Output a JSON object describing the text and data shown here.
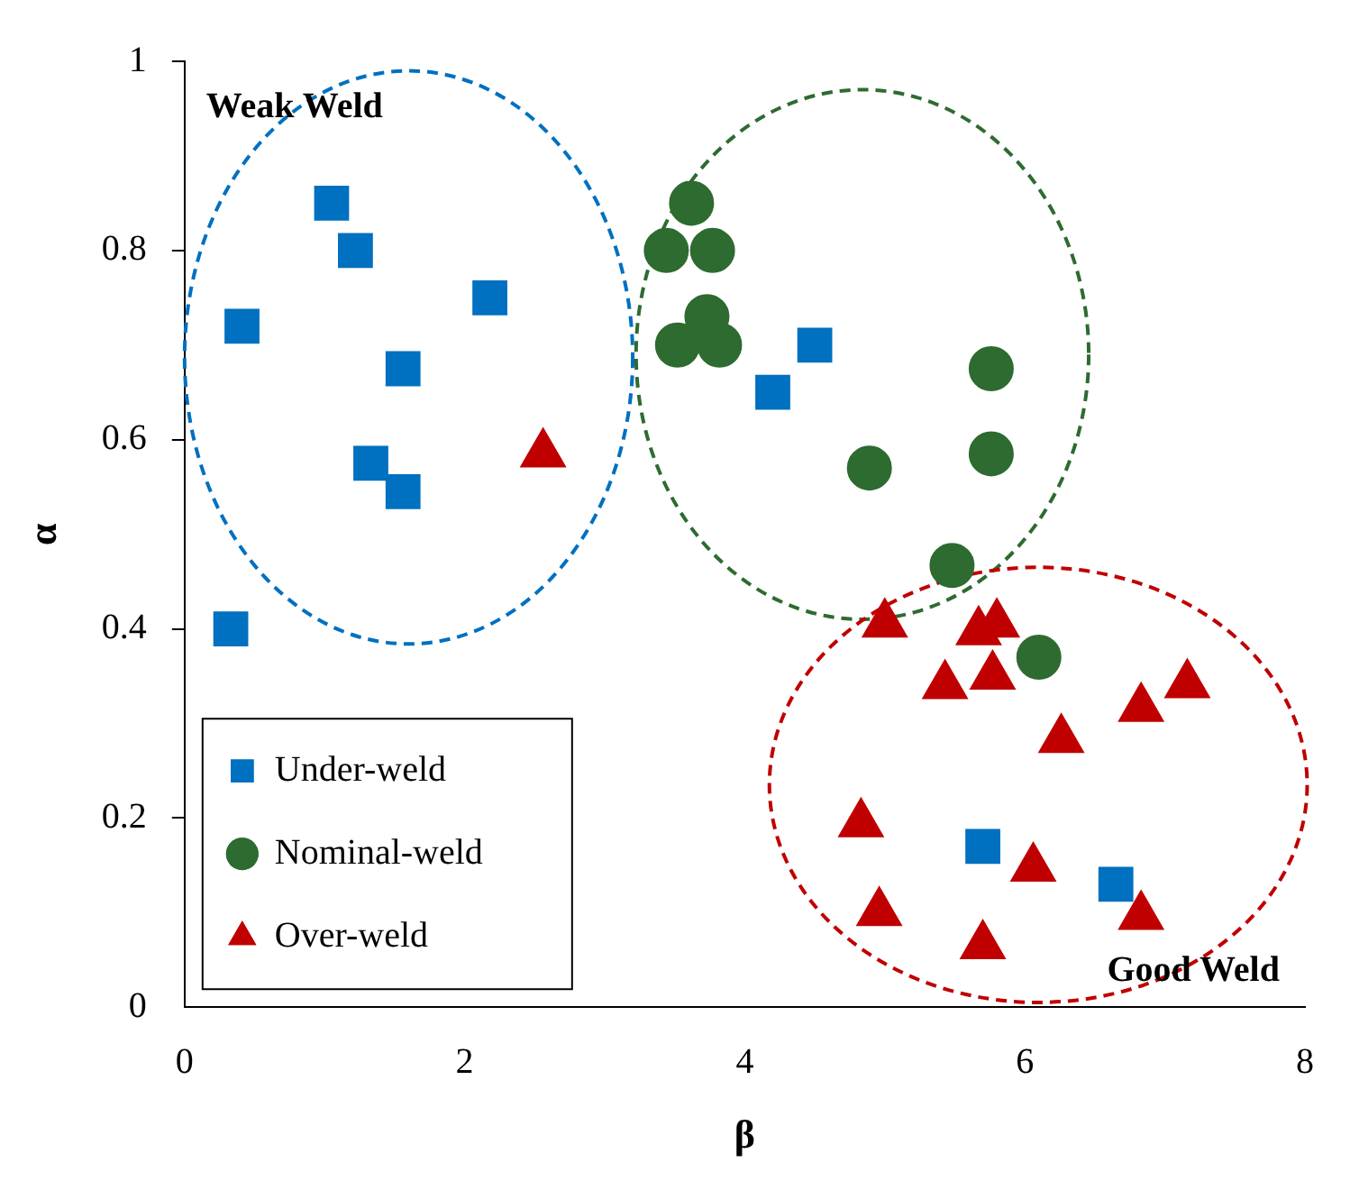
{
  "chart_data": {
    "type": "scatter",
    "xlabel": "β",
    "ylabel": "α",
    "xlim": [
      0,
      8
    ],
    "ylim": [
      0,
      1
    ],
    "xticks": [
      0,
      2,
      4,
      6,
      8
    ],
    "yticks": [
      0,
      0.2,
      0.4,
      0.6,
      0.8,
      1
    ],
    "grid": false,
    "legend": "bottom left",
    "annotations": [
      "Weak Weld",
      "Good Weld"
    ],
    "series": [
      {
        "name": "Under-weld",
        "color": "#0070c0",
        "marker": "square",
        "x": [
          1.05,
          1.22,
          0.41,
          2.18,
          1.56,
          1.33,
          1.56,
          0.33,
          4.5,
          4.2,
          5.7,
          6.65
        ],
        "values": [
          0.85,
          0.8,
          0.72,
          0.75,
          0.675,
          0.575,
          0.545,
          0.4,
          0.7,
          0.65,
          0.17,
          0.13
        ]
      },
      {
        "name": "Nominal-weld",
        "color": "#2e6b30",
        "marker": "circle",
        "x": [
          3.62,
          3.44,
          3.77,
          3.73,
          3.52,
          3.82,
          4.89,
          5.76,
          5.76,
          5.48,
          6.1
        ],
        "values": [
          0.85,
          0.8,
          0.8,
          0.73,
          0.7,
          0.7,
          0.57,
          0.675,
          0.585,
          0.467,
          0.37
        ]
      },
      {
        "name": "Over-weld",
        "color": "#c00000",
        "marker": "triangle",
        "x": [
          2.56,
          5.0,
          5.67,
          5.8,
          5.43,
          5.77,
          6.26,
          6.83,
          7.16,
          4.83,
          4.96,
          5.7,
          6.06,
          6.83
        ],
        "values": [
          0.585,
          0.405,
          0.397,
          0.405,
          0.34,
          0.35,
          0.283,
          0.316,
          0.341,
          0.194,
          0.1,
          0.065,
          0.147,
          0.096
        ]
      }
    ]
  }
}
